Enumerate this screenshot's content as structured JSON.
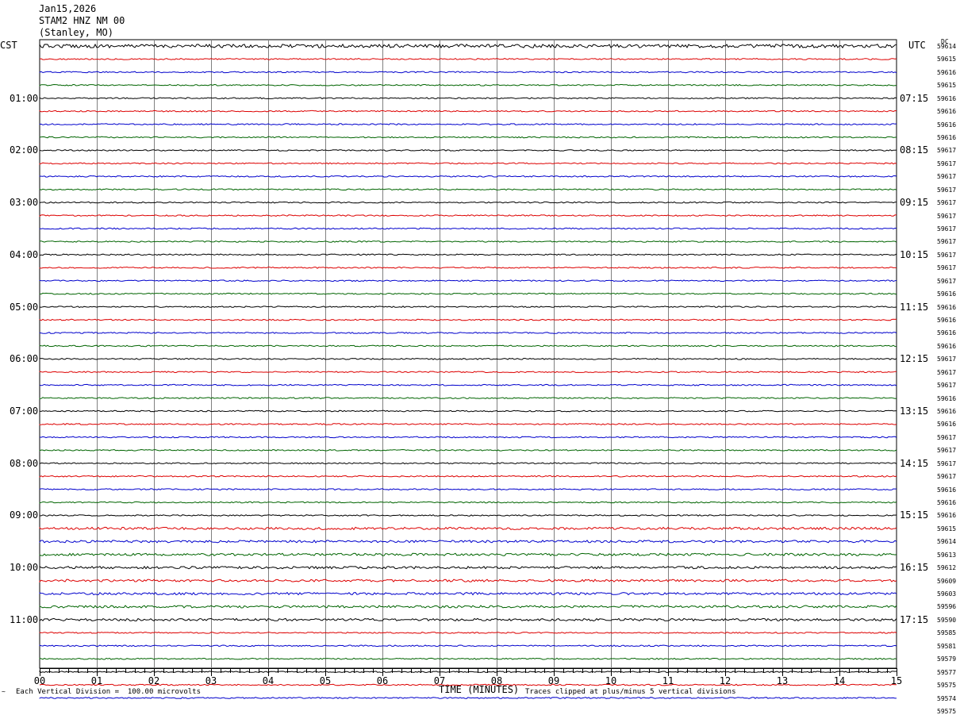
{
  "header": {
    "date": "Jan15,2026",
    "station": "STAM2 HNZ NM 00",
    "location": "(Stanley, MO)",
    "left_tz": "CST",
    "right_tz": "UTC",
    "dc_label": "DC"
  },
  "footer": {
    "scale_note": "Each Vertical Division =  100.00 microvolts",
    "xlabel": "TIME (MINUTES)",
    "clip_note": "Traces clipped at plus/minus 5 vertical divisions",
    "corner_mark": "~"
  },
  "chart_data": {
    "type": "line",
    "title": "STAM2 HNZ NM 00",
    "xlabel": "TIME (MINUTES)",
    "xlim": [
      0,
      15
    ],
    "x_ticks": [
      "00",
      "01",
      "02",
      "03",
      "04",
      "05",
      "06",
      "07",
      "08",
      "09",
      "10",
      "11",
      "12",
      "13",
      "14",
      "15"
    ],
    "trace_colors": [
      "#000000",
      "#dd0000",
      "#0000cc",
      "#006400"
    ],
    "left_time_labels": [
      "01:00",
      "02:00",
      "03:00",
      "04:00",
      "05:00",
      "06:00",
      "07:00",
      "08:00",
      "09:00",
      "10:00",
      "11:00"
    ],
    "right_time_labels": [
      "07:15",
      "08:15",
      "09:15",
      "10:15",
      "11:15",
      "12:15",
      "13:15",
      "14:15",
      "15:15",
      "16:15",
      "17:15"
    ],
    "dc_values": [
      "59614",
      "59615",
      "59616",
      "59615",
      "59616",
      "59616",
      "59616",
      "59616",
      "59617",
      "59617",
      "59617",
      "59617",
      "59617",
      "59617",
      "59617",
      "59617",
      "59617",
      "59617",
      "59617",
      "59616",
      "59616",
      "59616",
      "59616",
      "59616",
      "59617",
      "59617",
      "59617",
      "59616",
      "59616",
      "59616",
      "59617",
      "59617",
      "59617",
      "59617",
      "59616",
      "59616",
      "59616",
      "59615",
      "59614",
      "59613",
      "59612",
      "59609",
      "59603",
      "59596",
      "59590",
      "59585",
      "59581",
      "59579",
      "59577",
      "59575",
      "59574",
      "59575"
    ],
    "grid": true
  }
}
